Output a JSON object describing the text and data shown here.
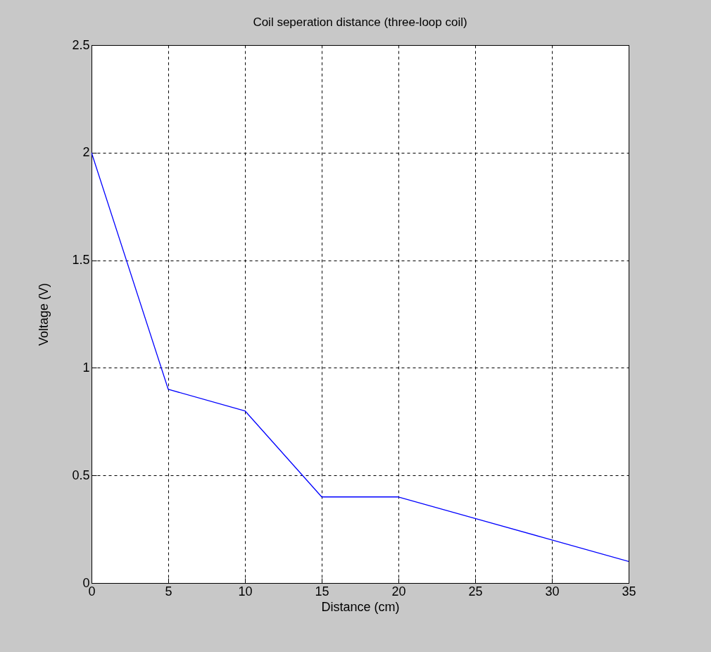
{
  "chart_data": {
    "type": "line",
    "title": "Coil seperation distance (three-loop coil)",
    "xlabel": "Distance (cm)",
    "ylabel": "Voltage (V)",
    "x": [
      0,
      5,
      10,
      15,
      20,
      25,
      30,
      35
    ],
    "series": [
      {
        "color": "#0000ff",
        "values": [
          2,
          0.9,
          0.8,
          0.4,
          0.4,
          0.3,
          0.2,
          0.1
        ]
      }
    ],
    "xlim": [
      0,
      35
    ],
    "xticks": [
      0,
      5,
      10,
      15,
      20,
      25,
      30,
      35
    ],
    "ylim": [
      0,
      2.5
    ],
    "yticks": [
      0,
      0.5,
      1,
      1.5,
      2,
      2.5
    ],
    "grid": true,
    "marker": "none",
    "line_style": "solid"
  }
}
